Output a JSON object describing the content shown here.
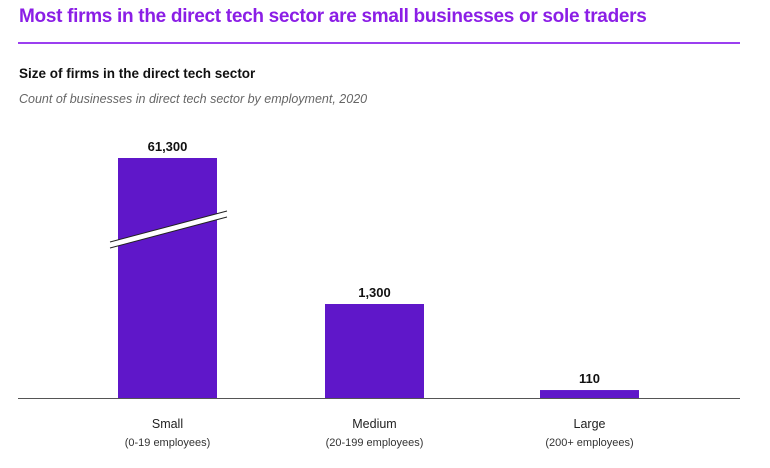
{
  "header": {
    "title": "Most firms in the direct tech sector are small businesses or sole traders"
  },
  "chart_data": {
    "type": "bar",
    "title": "Size of firms in the direct tech sector",
    "subtitle": "Count of businesses in direct tech sector by employment, 2020",
    "categories": [
      "Small",
      "Medium",
      "Large"
    ],
    "category_sublabels": [
      "(0-19 employees)",
      "(20-199 employees)",
      "(200+ employees)"
    ],
    "values": [
      61300,
      1300,
      110
    ],
    "data_labels": [
      "61,300",
      "1,300",
      "110"
    ],
    "axis_break_on": "Small",
    "grid": false,
    "colors": {
      "bar": "#5f17c9",
      "title": "#8b1ee6"
    }
  }
}
